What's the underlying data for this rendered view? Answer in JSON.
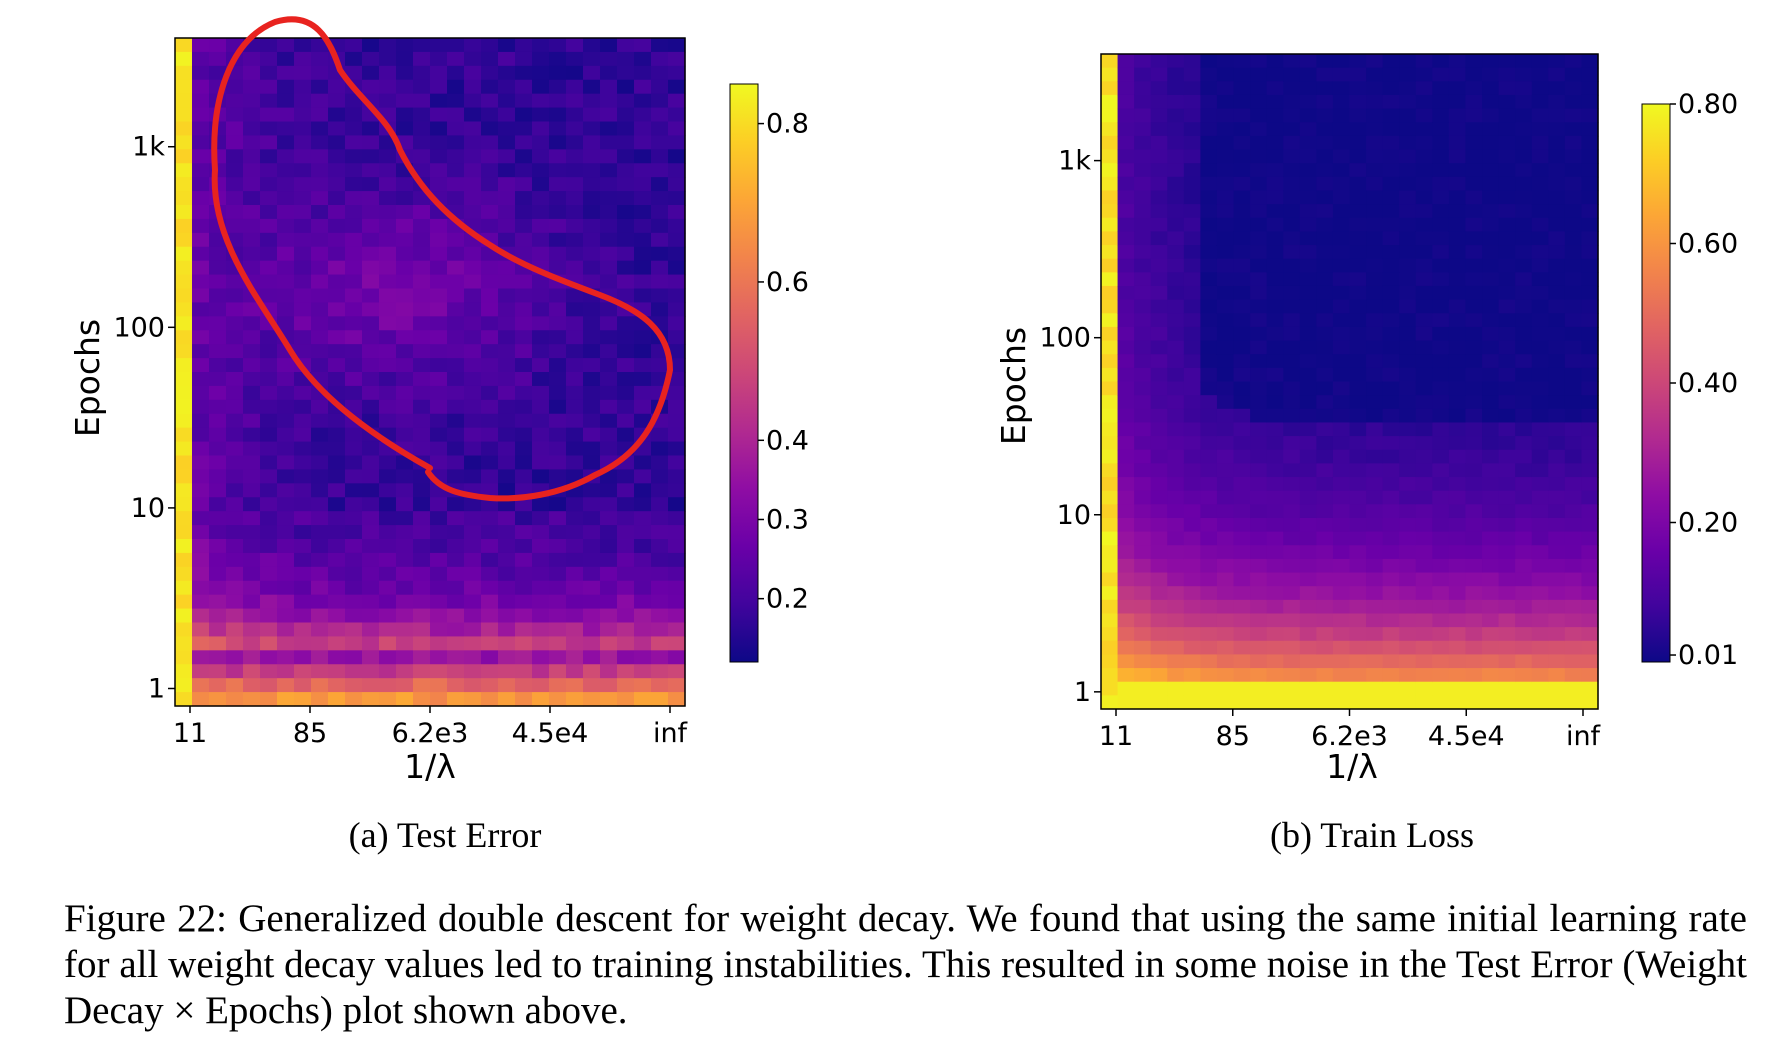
{
  "chart_data": [
    {
      "type": "heatmap",
      "panel_caption": "(a) Test Error",
      "xlabel": "1/λ",
      "ylabel": "Epochs",
      "x_tick_labels": [
        "11",
        "85",
        "6.2e3",
        "4.5e4",
        "inf"
      ],
      "y_tick_labels": [
        "1",
        "10",
        "100",
        "1k"
      ],
      "y_scale": "log",
      "y_range": [
        0.8,
        4000
      ],
      "colormap": "plasma",
      "colorbar": {
        "range": [
          0.12,
          0.85
        ],
        "tick_values": [
          0.2,
          0.3,
          0.4,
          0.6,
          0.8
        ],
        "tick_labels": [
          "0.2",
          "0.3",
          "0.4",
          "0.6",
          "0.8"
        ]
      },
      "columns": 30,
      "rows": 48,
      "description_of_values": "Test error is high (about 0.8) for the smallest 1/λ column and for the first epoch; it drops to roughly 0.15–0.2 for intermediate epochs (30–100) and rises to about 0.25–0.35 in a band around 100–1k epochs for moderate 1/λ (double-descent peak), then decreases again at the largest epochs.",
      "annotation": "red hand-drawn loop around region of elevated test error"
    },
    {
      "type": "heatmap",
      "panel_caption": "(b) Train Loss",
      "xlabel": "1/λ",
      "ylabel": "Epochs",
      "x_tick_labels": [
        "11",
        "85",
        "6.2e3",
        "4.5e4",
        "inf"
      ],
      "y_tick_labels": [
        "1",
        "10",
        "100",
        "1k"
      ],
      "y_scale": "log",
      "y_range": [
        0.8,
        4000
      ],
      "colormap": "plasma",
      "colorbar": {
        "range": [
          0.0,
          0.8
        ],
        "tick_values": [
          0.01,
          0.2,
          0.4,
          0.6,
          0.8
        ],
        "tick_labels": [
          "0.01",
          "0.20",
          "0.40",
          "0.60",
          "0.80"
        ]
      },
      "columns": 30,
      "rows": 48,
      "description_of_values": "Train loss is about 0.8 for the smallest 1/λ and at the first epoch; it decreases with epochs and 1/λ, reaching about 0.01 for epochs above ~150 and 1/λ above ~85."
    }
  ],
  "figure_caption": "Figure 22: Generalized double descent for weight decay.  We found that using the same initial learning rate for all weight decay values led to training instabilities. This resulted in some noise in the Test Error (Weight Decay × Epochs) plot shown above.",
  "colors": {
    "annotation": "#e8231f",
    "background": "#ffffff"
  }
}
